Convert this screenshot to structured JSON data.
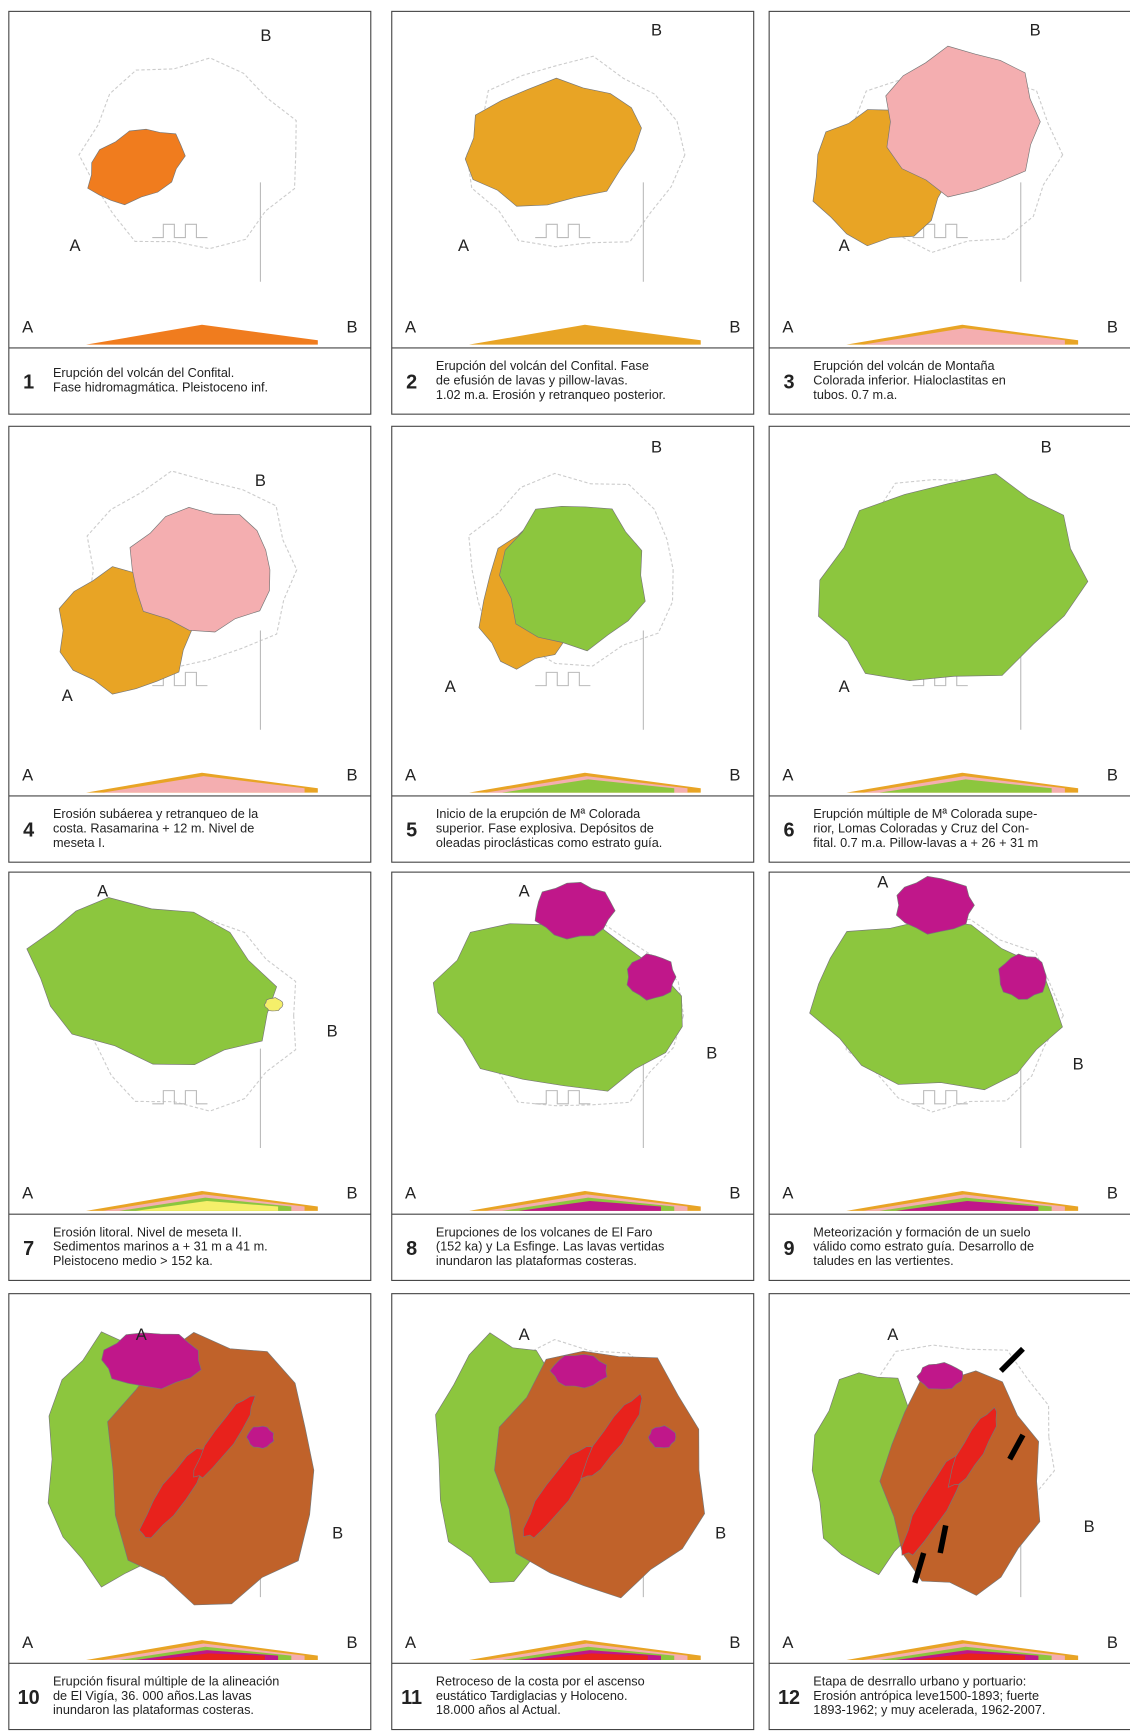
{
  "panels": [
    {
      "number": "1",
      "map_a": "A",
      "map_b": "B",
      "section_a": "A",
      "section_b": "B",
      "caption": [
        "Erupción  del volcán del Confital.",
        "Fase hidromagmática. Pleistoceno inf."
      ]
    },
    {
      "number": "2",
      "map_a": "A",
      "map_b": "B",
      "section_a": "A",
      "section_b": "B",
      "caption": [
        "Erupción  del volcán del Confital. Fase",
        "de efusión de lavas y pillow-lavas.",
        "1.02 m.a. Erosión y retranqueo posterior."
      ]
    },
    {
      "number": "3",
      "map_a": "A",
      "map_b": "B",
      "section_a": "A",
      "section_b": "B",
      "caption": [
        "Erupción  del  volcán de Montaña",
        "Colorada inferior. Hialoclastitas en",
        "tubos. 0.7 m.a."
      ]
    },
    {
      "number": "4",
      "map_a": "A",
      "map_b": "B",
      "section_a": "A",
      "section_b": "B",
      "caption": [
        "Erosión subáerea y retranqueo de la",
        "costa. Rasamarina + 12 m. Nivel de",
        "meseta I."
      ]
    },
    {
      "number": "5",
      "map_a": "A",
      "map_b": "B",
      "section_a": "A",
      "section_b": "B",
      "caption": [
        "Inicio de la erupción de Mª Colorada",
        "superior. Fase explosiva. Depósitos de",
        "oleadas piroclásticas como estrato guía."
      ]
    },
    {
      "number": "6",
      "map_a": "A",
      "map_b": "B",
      "section_a": "A",
      "section_b": "B",
      "caption": [
        "Erupción múltiple de Mª Colorada supe-",
        "rior, Lomas Coloradas y Cruz del Con-",
        "fital. 0.7 m.a. Pillow-lavas a + 26 + 31 m"
      ]
    },
    {
      "number": "7",
      "map_a": "A",
      "map_b": "B",
      "section_a": "A",
      "section_b": "B",
      "caption": [
        "Erosión litoral. Nivel de meseta II.",
        "Sedimentos marinos a + 31 m a 41 m.",
        "Pleistoceno medio > 152 ka."
      ]
    },
    {
      "number": "8",
      "map_a": "A",
      "map_b": "B",
      "section_a": "A",
      "section_b": "B",
      "caption": [
        "Erupciones de los volcanes de El Faro",
        "(152 ka) y La Esfinge. Las lavas vertidas",
        "inundaron las plataformas costeras."
      ]
    },
    {
      "number": "9",
      "map_a": "A",
      "map_b": "B",
      "section_a": "A",
      "section_b": "B",
      "caption": [
        "Meteorización y formación de un suelo",
        "válido como estrato guía. Desarrollo de",
        "taludes en las vertientes."
      ]
    },
    {
      "number": "10",
      "map_a": "A",
      "map_b": "B",
      "section_a": "A",
      "section_b": "B",
      "caption": [
        "Erupción fisural múltiple de la alineación",
        "de El Vigía, 36. 000 años.Las lavas",
        "inundaron las plataformas costeras."
      ]
    },
    {
      "number": "11",
      "map_a": "A",
      "map_b": "B",
      "section_a": "A",
      "section_b": "B",
      "caption": [
        "Retroceso de la costa  por el ascenso",
        "eustático Tardiglacias y Holoceno.",
        "18.000 años al Actual."
      ]
    },
    {
      "number": "12",
      "map_a": "A",
      "map_b": "B",
      "section_a": "A",
      "section_b": "B",
      "caption": [
        "Etapa de desrrallo urbano y portuario:",
        "Erosión antrópica leve1500-1893; fuerte",
        "1893-1962; y muy acelerada, 1962-2007."
      ]
    }
  ]
}
